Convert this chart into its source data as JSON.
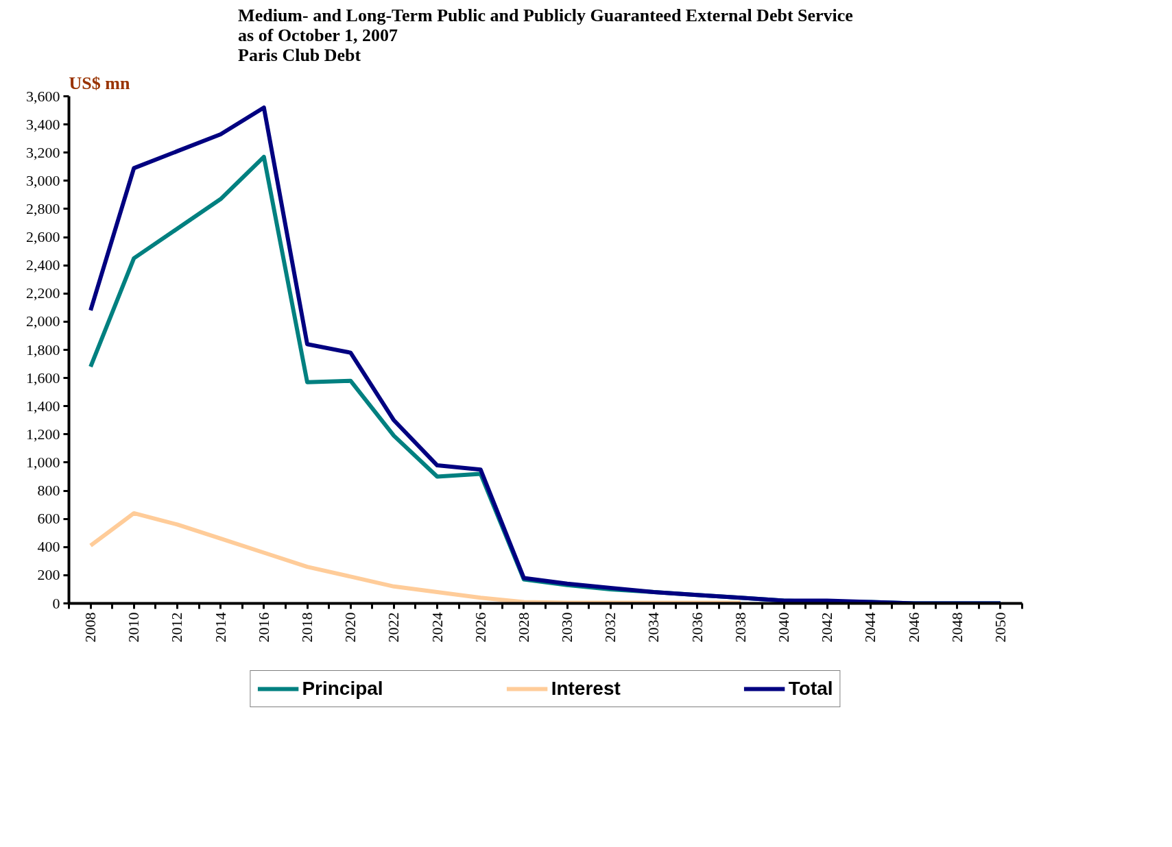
{
  "chart_data": {
    "type": "line",
    "title": "Medium- and Long-Term Public and Publicly Guaranteed External Debt Service\nas of October 1, 2007\nParis Club Debt",
    "ylabel": "US$ mn",
    "x": [
      2008,
      2010,
      2012,
      2014,
      2016,
      2018,
      2020,
      2022,
      2024,
      2026,
      2028,
      2030,
      2032,
      2034,
      2036,
      2038,
      2040,
      2042,
      2044,
      2046,
      2048,
      2050
    ],
    "series": [
      {
        "name": "Principal",
        "color": "#008080",
        "values": [
          1680,
          2450,
          2660,
          2870,
          3170,
          1570,
          1580,
          1190,
          900,
          920,
          170,
          130,
          100,
          80,
          60,
          40,
          20,
          10,
          10,
          0,
          0,
          0
        ]
      },
      {
        "name": "Interest",
        "color": "#ffcc99",
        "x": [
          2008,
          2010,
          2012,
          2014,
          2016,
          2018,
          2020,
          2022,
          2024,
          2026,
          2028,
          2030,
          2032,
          2034,
          2036,
          2038
        ],
        "values": [
          410,
          640,
          560,
          460,
          360,
          260,
          190,
          120,
          80,
          40,
          10,
          5,
          5,
          5,
          5,
          5
        ]
      },
      {
        "name": "Total",
        "color": "#000080",
        "values": [
          2080,
          3090,
          3210,
          3330,
          3520,
          1840,
          1780,
          1300,
          980,
          950,
          180,
          140,
          110,
          80,
          60,
          40,
          20,
          20,
          10,
          0,
          0,
          0
        ]
      }
    ],
    "xlim": [
      2007,
      2051
    ],
    "xticks": [
      {
        "value": 2007,
        "label": null
      },
      2008,
      {
        "value": 2009,
        "label": null
      },
      2010,
      {
        "value": 2011,
        "label": null
      },
      2012,
      {
        "value": 2013,
        "label": null
      },
      2014,
      {
        "value": 2015,
        "label": null
      },
      2016,
      {
        "value": 2017,
        "label": null
      },
      2018,
      {
        "value": 2019,
        "label": null
      },
      2020,
      {
        "value": 2021,
        "label": null
      },
      2022,
      {
        "value": 2023,
        "label": null
      },
      2024,
      {
        "value": 2025,
        "label": null
      },
      2026,
      {
        "value": 2027,
        "label": null
      },
      2028,
      {
        "value": 2029,
        "label": null
      },
      2030,
      {
        "value": 2031,
        "label": null
      },
      2032,
      {
        "value": 2033,
        "label": null
      },
      2034,
      {
        "value": 2035,
        "label": null
      },
      2036,
      {
        "value": 2037,
        "label": null
      },
      2038,
      {
        "value": 2039,
        "label": null
      },
      2040,
      {
        "value": 2041,
        "label": null
      },
      2042,
      {
        "value": 2043,
        "label": null
      },
      2044,
      {
        "value": 2045,
        "label": null
      },
      2046,
      {
        "value": 2047,
        "label": null
      },
      2048,
      {
        "value": 2049,
        "label": null
      },
      2050,
      {
        "value": 2051,
        "label": null
      }
    ],
    "ylim": [
      0,
      3600
    ],
    "yticks": [
      0,
      200,
      400,
      600,
      800,
      {
        "value": 1000,
        "label": "1,000"
      },
      {
        "value": 1200,
        "label": "1,200"
      },
      {
        "value": 1400,
        "label": "1,400"
      },
      {
        "value": 1600,
        "label": "1,600"
      },
      {
        "value": 1800,
        "label": "1,800"
      },
      {
        "value": 2000,
        "label": "2,000"
      },
      {
        "value": 2200,
        "label": "2,200"
      },
      {
        "value": 2400,
        "label": "2,400"
      },
      {
        "value": 2600,
        "label": "2,600"
      },
      {
        "value": 2800,
        "label": "2,800"
      },
      {
        "value": 3000,
        "label": "3,000"
      },
      {
        "value": 3200,
        "label": "3,200"
      },
      {
        "value": 3400,
        "label": "3,400"
      },
      {
        "value": 3600,
        "label": "3,600"
      }
    ],
    "grid": false,
    "legend": "bottom",
    "marker": "none",
    "line_style": "solid"
  }
}
